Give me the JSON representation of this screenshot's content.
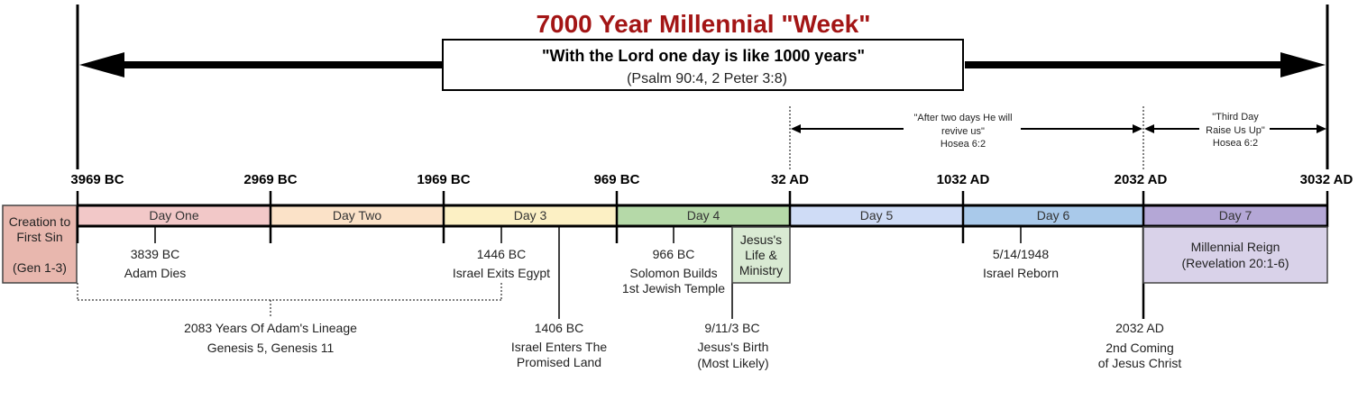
{
  "title": "7000 Year Millennial \"Week\"",
  "quote": {
    "text": "\"With the Lord one day is like 1000 years\"",
    "reference": "(Psalm 90:4, 2 Peter 3:8)"
  },
  "dates": [
    "3969 BC",
    "2969 BC",
    "1969 BC",
    "969 BC",
    "32 AD",
    "1032 AD",
    "2032 AD",
    "3032 AD"
  ],
  "creation": {
    "line1": "Creation to",
    "line2": "First Sin",
    "line3": "(Gen 1-3)",
    "color": "#e8b7ae"
  },
  "days": [
    {
      "label": "Day One",
      "color": "#f2c8c8"
    },
    {
      "label": "Day Two",
      "color": "#fbe2c8"
    },
    {
      "label": "Day 3",
      "color": "#fcf0c4"
    },
    {
      "label": "Day 4",
      "color": "#b5d9a8"
    },
    {
      "label": "Day 5",
      "color": "#cfdcf6"
    },
    {
      "label": "Day 6",
      "color": "#a9c9ea"
    },
    {
      "label": "Day 7",
      "color": "#b4a7d6"
    }
  ],
  "hosea_two_days": {
    "line1": "\"After two days He will",
    "line2": "revive us\"",
    "line3": "Hosea 6:2"
  },
  "hosea_third_day": {
    "line1": "\"Third Day",
    "line2": "Raise Us Up\"",
    "line3": "Hosea 6:2"
  },
  "events": {
    "adam_dies": {
      "date": "3839 BC",
      "label": "Adam Dies"
    },
    "exodus": {
      "date": "1446 BC",
      "label": "Israel Exits Egypt"
    },
    "promised_land": {
      "date": "1406 BC",
      "line1": "Israel Enters The",
      "line2": "Promised Land"
    },
    "temple": {
      "date": "966 BC",
      "line1": "Solomon Builds",
      "line2": "1st Jewish Temple"
    },
    "jesus_ministry": {
      "line1": "Jesus's",
      "line2": "Life &",
      "line3": "Ministry",
      "color": "#d9ead3"
    },
    "jesus_birth": {
      "date": "9/11/3 BC",
      "line1": "Jesus's Birth",
      "line2": "(Most Likely)"
    },
    "israel_reborn": {
      "date": "5/14/1948",
      "label": "Israel Reborn"
    },
    "second_coming": {
      "date": "2032 AD",
      "line1": "2nd Coming",
      "line2": "of Jesus Christ"
    },
    "millennial_reign": {
      "line1": "Millennial Reign",
      "line2": "(Revelation 20:1-6)",
      "color": "#d9d2e9"
    }
  },
  "lineage": {
    "line1": "2083 Years Of Adam's Lineage",
    "line2": "Genesis 5, Genesis 11"
  }
}
